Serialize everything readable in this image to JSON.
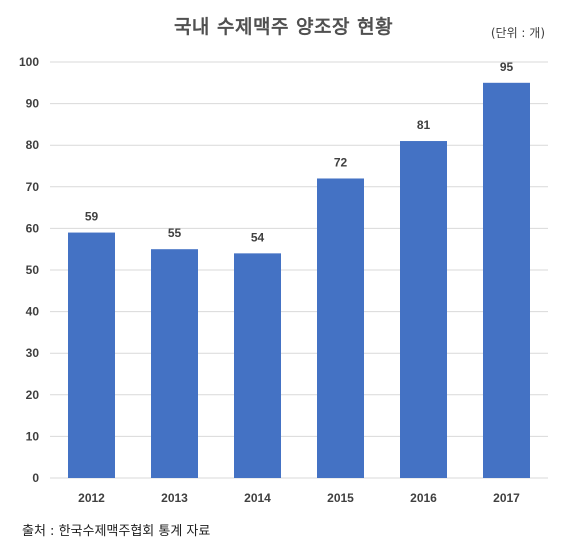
{
  "chart_data": {
    "type": "bar",
    "title": "국내 수제맥주 양조장 현황",
    "unit_note": "(단위 : 개)",
    "source_note": "출처 : 한국수제맥주협회 통계 자료",
    "categories": [
      "2012",
      "2013",
      "2014",
      "2015",
      "2016",
      "2017"
    ],
    "values": [
      59,
      55,
      54,
      72,
      81,
      95
    ],
    "ylim": [
      0,
      100
    ],
    "yticks": [
      0,
      10,
      20,
      30,
      40,
      50,
      60,
      70,
      80,
      90,
      100
    ],
    "grid": true,
    "data_labels": true,
    "bar_color": "#4472C4",
    "grid_color": "#D9D9D9"
  }
}
